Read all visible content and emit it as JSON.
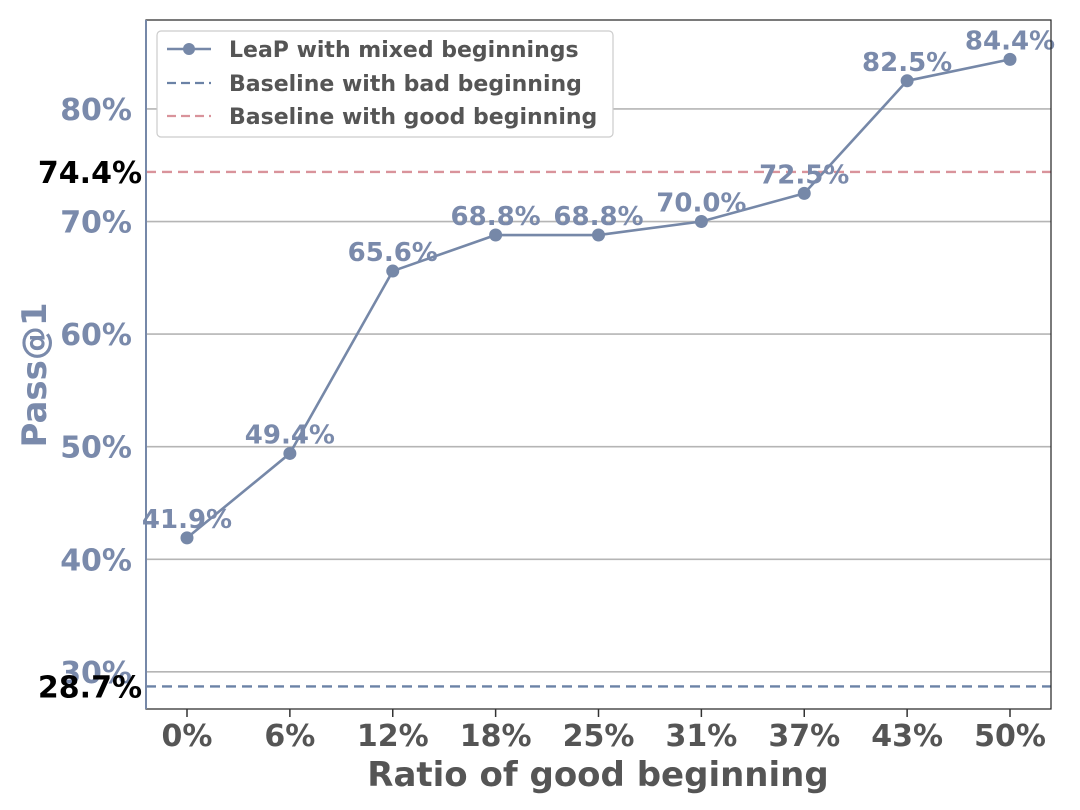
{
  "chart_data": {
    "type": "line",
    "title": "",
    "xlabel": "Ratio of good beginning",
    "ylabel": "Pass@1",
    "categories": [
      "0%",
      "6%",
      "12%",
      "18%",
      "25%",
      "31%",
      "37%",
      "43%",
      "50%"
    ],
    "series": [
      {
        "name": "LeaP with mixed beginnings",
        "values": [
          41.9,
          49.4,
          65.6,
          68.8,
          68.8,
          70.0,
          72.5,
          82.5,
          84.4
        ],
        "labels": [
          "41.9%",
          "49.4%",
          "65.6%",
          "68.8%",
          "68.8%",
          "70.0%",
          "72.5%",
          "82.5%",
          "84.4%"
        ],
        "color": "#7688a8"
      }
    ],
    "reference_lines": [
      {
        "name": "Baseline with bad beginning",
        "value": 28.7,
        "label": "28.7%",
        "color": "#6b82a6"
      },
      {
        "name": "Baseline with good beginning",
        "value": 74.4,
        "label": "74.4%",
        "color": "#d9939b"
      }
    ],
    "yticks": [
      30,
      40,
      50,
      60,
      70,
      80
    ],
    "ytick_labels": [
      "30%",
      "40%",
      "50%",
      "60%",
      "70%",
      "80%"
    ],
    "ylim": [
      26.7,
      87.9
    ],
    "grid": "horizontal",
    "legend_position": "top-left",
    "colors": {
      "axis_text": "#555555",
      "y_text": "#7a8aab",
      "grid": "#b5b5b5"
    }
  }
}
